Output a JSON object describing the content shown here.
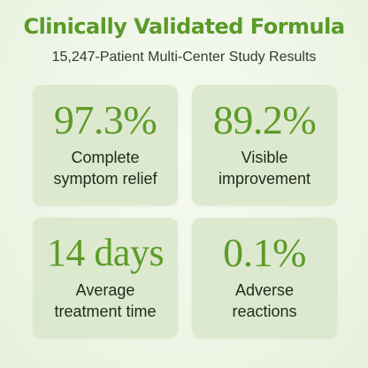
{
  "header": {
    "title": "Clinically Validated Formula",
    "subtitle": "15,247-Patient Multi-Center Study Results"
  },
  "stats": [
    {
      "value": "97.3%",
      "label_lines": [
        "Complete",
        "symptom relief"
      ]
    },
    {
      "value": "89.2%",
      "label_lines": [
        "Visible",
        "improvement"
      ]
    },
    {
      "value": "14 days",
      "label_lines": [
        "Average",
        "treatment time"
      ]
    },
    {
      "value": "0.1%",
      "label_lines": [
        "Adverse",
        "reactions"
      ]
    }
  ],
  "colors": {
    "accent": "#5d9b28",
    "card_background": "#dde9cf",
    "page_background": "#eef5e6",
    "text": "#1f2a1a"
  }
}
